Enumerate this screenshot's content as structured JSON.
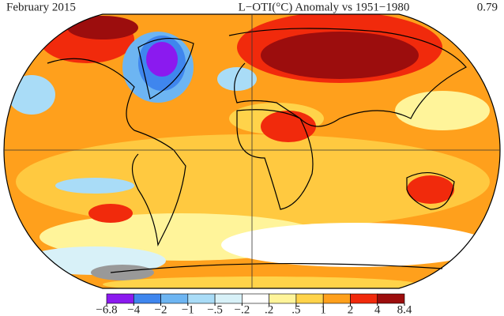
{
  "header": {
    "left": "February 2015",
    "title": "L−OTI(°C) Anomaly vs 1951−1980",
    "right": "0.79"
  },
  "legend": {
    "ticks": [
      {
        "value": -6.8,
        "label": "−6.8"
      },
      {
        "value": -4,
        "label": "−4"
      },
      {
        "value": -2,
        "label": "−2"
      },
      {
        "value": -1,
        "label": "−1"
      },
      {
        "value": -0.5,
        "label": "−.5"
      },
      {
        "value": -0.2,
        "label": "−.2"
      },
      {
        "value": 0.2,
        "label": ".2"
      },
      {
        "value": 0.5,
        "label": ".5"
      },
      {
        "value": 1,
        "label": "1"
      },
      {
        "value": 2,
        "label": "2"
      },
      {
        "value": 4,
        "label": "4"
      },
      {
        "value": 8.4,
        "label": "8.4"
      }
    ],
    "colors": [
      "#8b1aef",
      "#3f86ee",
      "#6db5f2",
      "#a9dcf7",
      "#d8f1f8",
      "#ffffff",
      "#fff49a",
      "#ffd34a",
      "#ffa01c",
      "#f12a0c",
      "#9c0d0d"
    ]
  }
}
